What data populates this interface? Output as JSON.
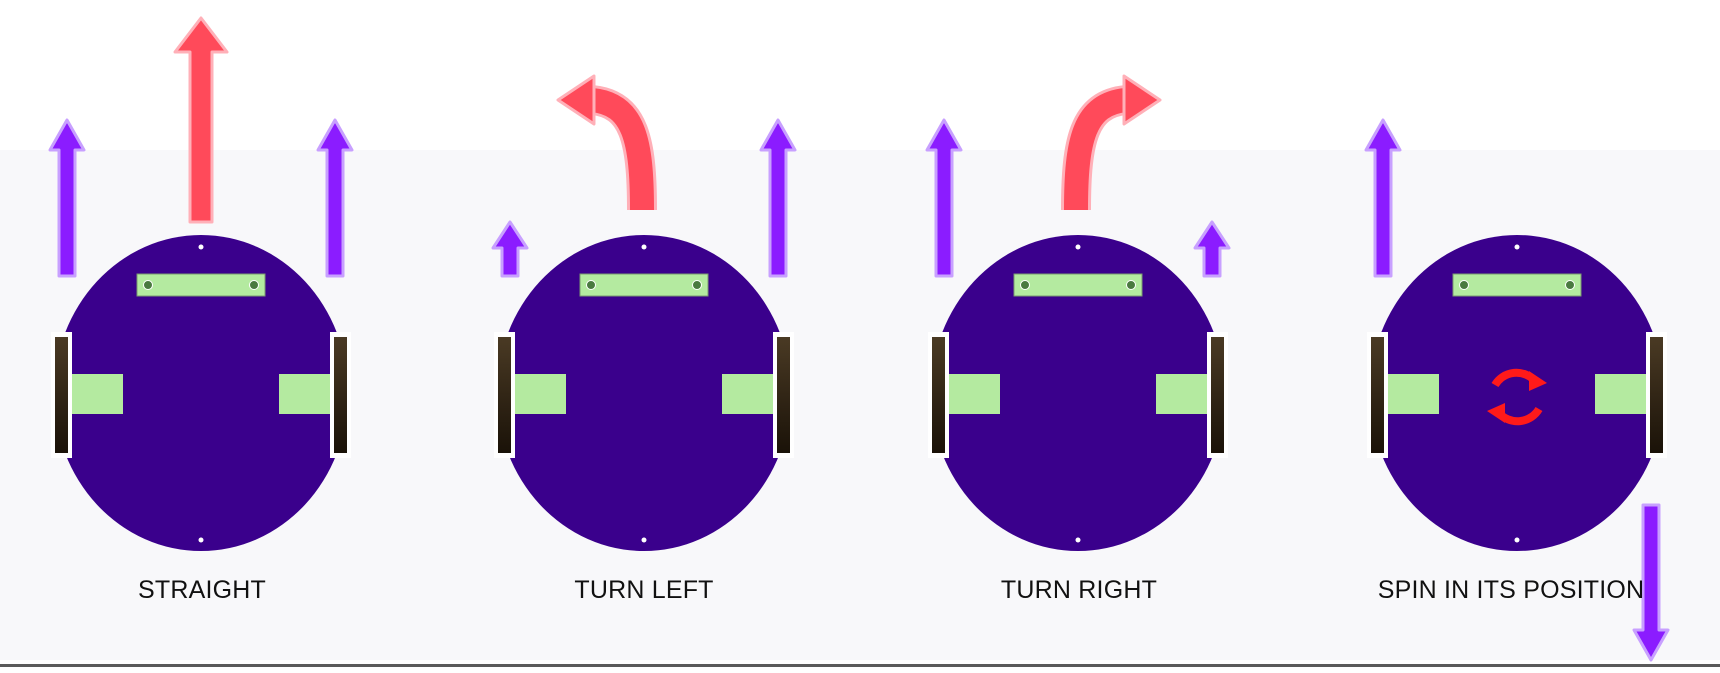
{
  "colors": {
    "body": "#3a008c",
    "sensor_bar": "#b4eaa0",
    "wheel_dark": "#1a1208",
    "wheel_light": "#4a3a24",
    "wheel_frame": "#ffffff",
    "wheel_arrow": "#8b1cff",
    "wheel_arrow_outline": "#c8a0ff",
    "direction_arrow": "#ff4a5a",
    "direction_arrow_outline": "#ffb0b8",
    "spin_arrows": "#ff1a1a",
    "caption_text": "#111111"
  },
  "diagrams": [
    {
      "id": "straight",
      "caption": "STRAIGHT",
      "left_wheel_arrow": "long-up",
      "right_wheel_arrow": "long-up",
      "direction": "straight"
    },
    {
      "id": "turn-left",
      "caption": "TURN LEFT",
      "left_wheel_arrow": "short-up",
      "right_wheel_arrow": "long-up",
      "direction": "curve-left"
    },
    {
      "id": "turn-right",
      "caption": "TURN RIGHT",
      "left_wheel_arrow": "long-up",
      "right_wheel_arrow": "short-up",
      "direction": "curve-right"
    },
    {
      "id": "spin",
      "caption": "SPIN IN ITS POSITION",
      "left_wheel_arrow": "long-up",
      "right_wheel_arrow": "long-down",
      "direction": "spin"
    }
  ]
}
